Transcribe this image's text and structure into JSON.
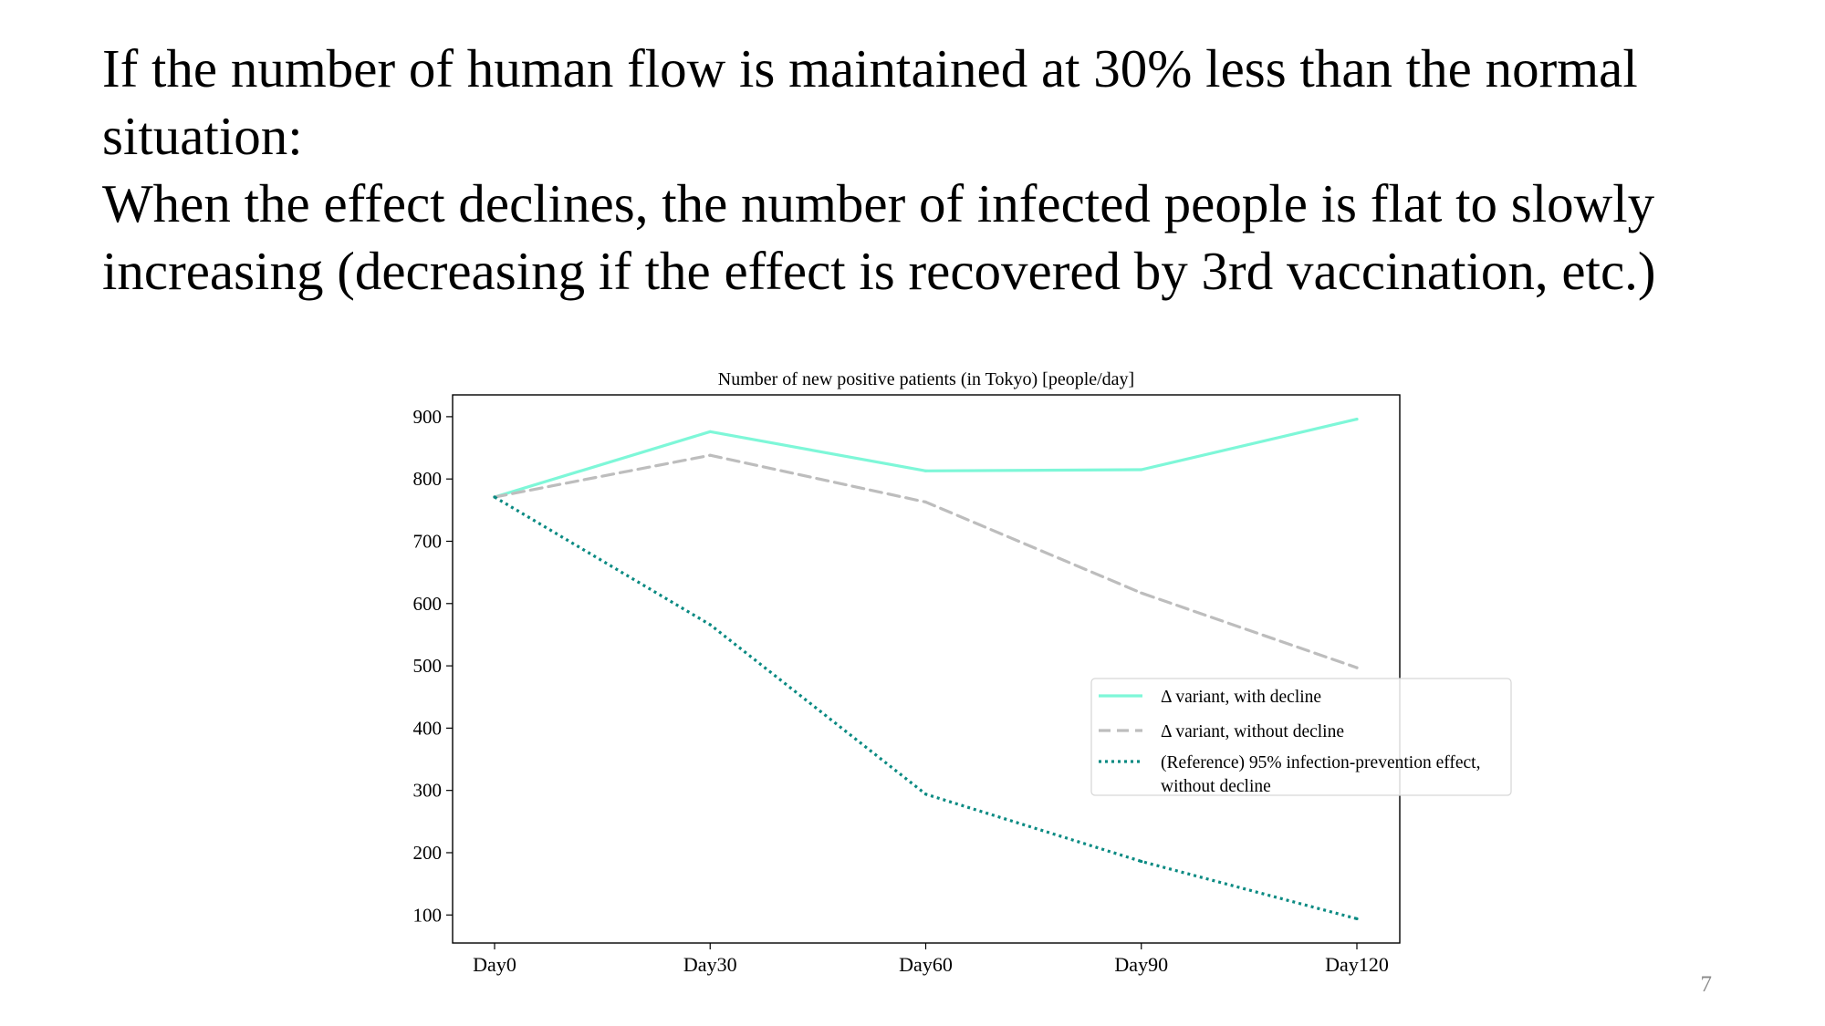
{
  "slide": {
    "heading_lines": [
      "If the number of human flow is maintained at 30% less than the normal",
      "situation:",
      "When the effect declines, the number of infected people is flat to slowly",
      "increasing (decreasing if the effect is recovered by 3rd vaccination, etc.)"
    ],
    "page_number": "7"
  },
  "chart_data": {
    "type": "line",
    "title": "Number of new positive patients (in Tokyo) [people/day]",
    "xlabel": "",
    "ylabel": "",
    "categories": [
      "Day0",
      "Day30",
      "Day60",
      "Day90",
      "Day120"
    ],
    "ylim": [
      55,
      935
    ],
    "yticks": [
      100,
      200,
      300,
      400,
      500,
      600,
      700,
      800,
      900
    ],
    "grid": false,
    "legend_position": "center-right",
    "series": [
      {
        "name": "Δ variant, with decline",
        "values": [
          771,
          876,
          813,
          815,
          896
        ],
        "color": "#7ef7d8",
        "style": "solid"
      },
      {
        "name": "Δ variant, without decline",
        "values": [
          771,
          838,
          763,
          617,
          497
        ],
        "color": "#bdbdbd",
        "style": "dashed"
      },
      {
        "name": "(Reference) 95% infection-prevention effect, without decline",
        "legend_lines": [
          "(Reference) 95% infection-prevention effect,",
          "without decline"
        ],
        "values": [
          771,
          566,
          294,
          186,
          94
        ],
        "color": "#0a8a82",
        "style": "dotted"
      }
    ]
  }
}
